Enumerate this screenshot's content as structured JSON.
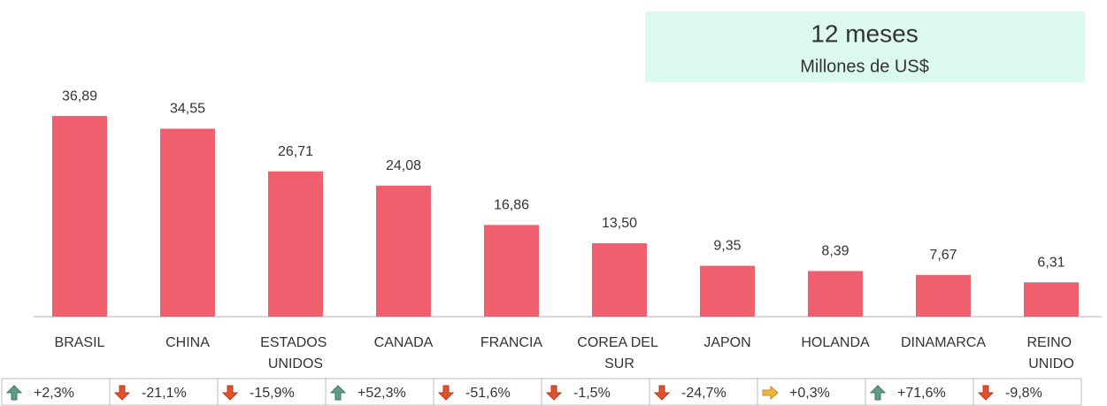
{
  "chart_data": {
    "type": "bar",
    "title": "12 meses",
    "subtitle": "Millones de US$",
    "categories": [
      "BRASIL",
      "CHINA",
      "ESTADOS UNIDOS",
      "CANADA",
      "FRANCIA",
      "COREA DEL SUR",
      "JAPON",
      "HOLANDA",
      "DINAMARCA",
      "REINO UNIDO"
    ],
    "values": [
      36.89,
      34.55,
      26.71,
      24.08,
      16.86,
      13.5,
      9.35,
      8.39,
      7.67,
      6.31
    ],
    "value_labels": [
      "36,89",
      "34,55",
      "26,71",
      "24,08",
      "16,86",
      "13,50",
      "9,35",
      "8,39",
      "7,67",
      "6,31"
    ],
    "changes": [
      2.3,
      -21.1,
      -15.9,
      52.3,
      -51.6,
      -1.5,
      -24.7,
      0.3,
      71.6,
      -9.8
    ],
    "change_labels": [
      "+2,3%",
      "-21,1%",
      "-15,9%",
      "+52,3%",
      "-51,6%",
      "-1,5%",
      "-24,7%",
      "+0,3%",
      "+71,6%",
      "-9,8%"
    ],
    "color": "#ef5f6e",
    "ylim": [
      0,
      40
    ]
  }
}
